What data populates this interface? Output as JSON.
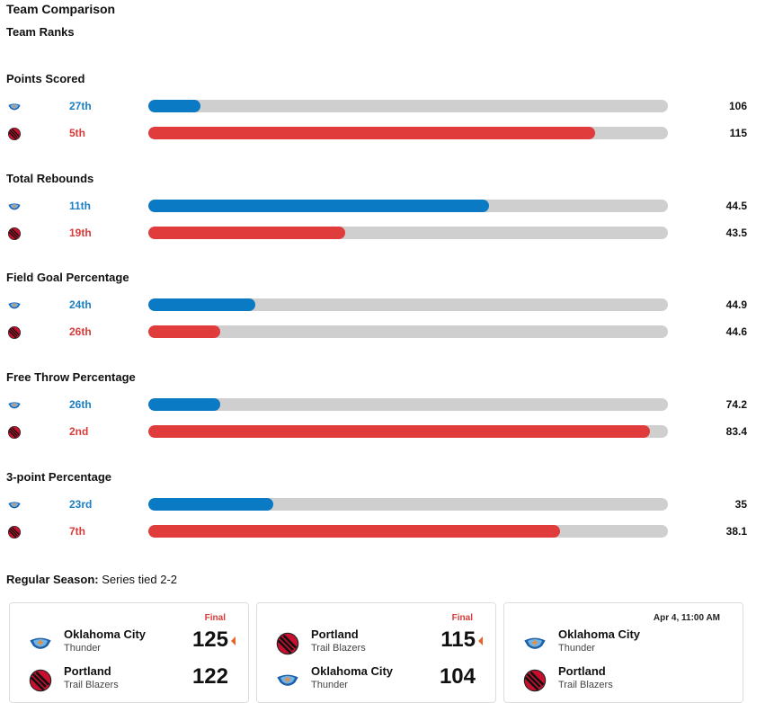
{
  "header": {
    "title": "Team Comparison",
    "subtitle": "Team Ranks"
  },
  "colors": {
    "okc": "#0a7ac4",
    "por": "#e03c3c",
    "track": "#cfcfcf"
  },
  "teams": {
    "okc": {
      "icon": "thunder-logo-icon"
    },
    "por": {
      "icon": "trail-blazers-logo-icon"
    }
  },
  "stats": [
    {
      "title": "Points Scored",
      "okc": {
        "rank": "27th",
        "value": "106",
        "fill_fraction": 0.1
      },
      "por": {
        "rank": "5th",
        "value": "115",
        "fill_fraction": 0.86
      }
    },
    {
      "title": "Total Rebounds",
      "okc": {
        "rank": "11th",
        "value": "44.5",
        "fill_fraction": 0.656
      },
      "por": {
        "rank": "19th",
        "value": "43.5",
        "fill_fraction": 0.379
      }
    },
    {
      "title": "Field Goal Percentage",
      "okc": {
        "rank": "24th",
        "value": "44.9",
        "fill_fraction": 0.206
      },
      "por": {
        "rank": "26th",
        "value": "44.6",
        "fill_fraction": 0.138
      }
    },
    {
      "title": "Free Throw Percentage",
      "okc": {
        "rank": "26th",
        "value": "74.2",
        "fill_fraction": 0.138
      },
      "por": {
        "rank": "2nd",
        "value": "83.4",
        "fill_fraction": 0.965
      }
    },
    {
      "title": "3-point Percentage",
      "okc": {
        "rank": "23rd",
        "value": "35",
        "fill_fraction": 0.241
      },
      "por": {
        "rank": "7th",
        "value": "38.1",
        "fill_fraction": 0.793
      }
    }
  ],
  "season": {
    "label": "Regular Season:",
    "text": " Series tied 2-2"
  },
  "games": [
    {
      "status": "Final",
      "teams": [
        {
          "key": "okc",
          "city": "Oklahoma City",
          "nick": "Thunder",
          "score": "125",
          "winner": true
        },
        {
          "key": "por",
          "city": "Portland",
          "nick": "Trail Blazers",
          "score": "122",
          "winner": false
        }
      ]
    },
    {
      "status": "Final",
      "teams": [
        {
          "key": "por",
          "city": "Portland",
          "nick": "Trail Blazers",
          "score": "115",
          "winner": true
        },
        {
          "key": "okc",
          "city": "Oklahoma City",
          "nick": "Thunder",
          "score": "104",
          "winner": false
        }
      ]
    },
    {
      "status": "Apr 4, 11:00 AM",
      "teams": [
        {
          "key": "okc",
          "city": "Oklahoma City",
          "nick": "Thunder",
          "score": "",
          "winner": false
        },
        {
          "key": "por",
          "city": "Portland",
          "nick": "Trail Blazers",
          "score": "",
          "winner": false
        }
      ]
    }
  ]
}
